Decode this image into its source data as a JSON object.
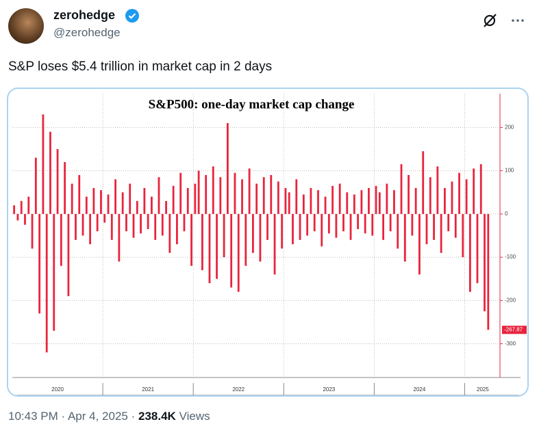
{
  "user": {
    "name": "zerohedge",
    "handle": "@zerohedge"
  },
  "tweet_text": "S&P loses $5.4 trillion in market cap in 2 days",
  "chart_data": {
    "type": "bar",
    "title": "S&P500: one-day market cap change",
    "color": "#e8243c",
    "x": [
      2020.02,
      2020.06,
      2020.1,
      2020.14,
      2020.18,
      2020.22,
      2020.26,
      2020.3,
      2020.34,
      2020.38,
      2020.42,
      2020.46,
      2020.5,
      2020.54,
      2020.58,
      2020.62,
      2020.66,
      2020.7,
      2020.74,
      2020.78,
      2020.82,
      2020.86,
      2020.9,
      2020.94,
      2020.98,
      2021.02,
      2021.06,
      2021.1,
      2021.14,
      2021.18,
      2021.22,
      2021.26,
      2021.3,
      2021.34,
      2021.38,
      2021.42,
      2021.46,
      2021.5,
      2021.54,
      2021.58,
      2021.62,
      2021.66,
      2021.7,
      2021.74,
      2021.78,
      2021.82,
      2021.86,
      2021.9,
      2021.94,
      2021.98,
      2022.02,
      2022.06,
      2022.1,
      2022.14,
      2022.18,
      2022.22,
      2022.26,
      2022.3,
      2022.34,
      2022.38,
      2022.42,
      2022.46,
      2022.5,
      2022.54,
      2022.58,
      2022.62,
      2022.66,
      2022.7,
      2022.74,
      2022.78,
      2022.82,
      2022.86,
      2022.9,
      2022.94,
      2022.98,
      2023.02,
      2023.06,
      2023.1,
      2023.14,
      2023.18,
      2023.22,
      2023.26,
      2023.3,
      2023.34,
      2023.38,
      2023.42,
      2023.46,
      2023.5,
      2023.54,
      2023.58,
      2023.62,
      2023.66,
      2023.7,
      2023.74,
      2023.78,
      2023.82,
      2023.86,
      2023.9,
      2023.94,
      2023.98,
      2024.02,
      2024.06,
      2024.1,
      2024.14,
      2024.18,
      2024.22,
      2024.26,
      2024.3,
      2024.34,
      2024.38,
      2024.42,
      2024.46,
      2024.5,
      2024.54,
      2024.58,
      2024.62,
      2024.66,
      2024.7,
      2024.74,
      2024.78,
      2024.82,
      2024.86,
      2024.9,
      2024.94,
      2024.98,
      2025.02,
      2025.06,
      2025.1,
      2025.14,
      2025.18,
      2025.22,
      2025.26
    ],
    "values": [
      20,
      -15,
      30,
      -25,
      40,
      -80,
      130,
      -230,
      230,
      -320,
      190,
      -270,
      150,
      -120,
      120,
      -190,
      70,
      -60,
      90,
      -50,
      40,
      -70,
      60,
      -40,
      55,
      -20,
      45,
      -60,
      80,
      -110,
      50,
      -40,
      70,
      -55,
      30,
      -45,
      60,
      -35,
      40,
      -60,
      85,
      -50,
      30,
      -90,
      65,
      -70,
      95,
      -40,
      60,
      -120,
      70,
      100,
      -130,
      90,
      -160,
      110,
      -150,
      85,
      -100,
      210,
      -170,
      95,
      -180,
      80,
      -120,
      105,
      -90,
      70,
      -110,
      85,
      -60,
      90,
      -140,
      75,
      -80,
      60,
      50,
      -70,
      80,
      -60,
      45,
      -50,
      60,
      -40,
      55,
      -75,
      40,
      -45,
      65,
      -55,
      70,
      -40,
      50,
      -60,
      45,
      -35,
      55,
      -45,
      60,
      -50,
      65,
      50,
      -60,
      70,
      -40,
      55,
      -80,
      115,
      -110,
      90,
      -50,
      60,
      -140,
      145,
      -70,
      85,
      -60,
      110,
      -90,
      60,
      -40,
      75,
      -55,
      95,
      -100,
      80,
      -180,
      105,
      -160,
      115,
      -225,
      -267.87
    ],
    "xlim": [
      2020,
      2025.39
    ],
    "ylim": [
      -378,
      278
    ],
    "yticks": [
      -300,
      -200,
      -100,
      0,
      100,
      200
    ],
    "xticks": [
      {
        "value": 2020.5,
        "label": "2020"
      },
      {
        "value": 2021.5,
        "label": "2021"
      },
      {
        "value": 2022.5,
        "label": "2022"
      },
      {
        "value": 2023.5,
        "label": "2023"
      },
      {
        "value": 2024.5,
        "label": "2024"
      },
      {
        "value": 2025.2,
        "label": "2025"
      }
    ],
    "year_boundaries": [
      2021,
      2022,
      2023,
      2024,
      2025
    ],
    "grid": true
  },
  "footer": {
    "time": "10:43 PM",
    "separator": "·",
    "date": "Apr 4, 2025",
    "views": "238.4K",
    "views_label": "Views"
  }
}
